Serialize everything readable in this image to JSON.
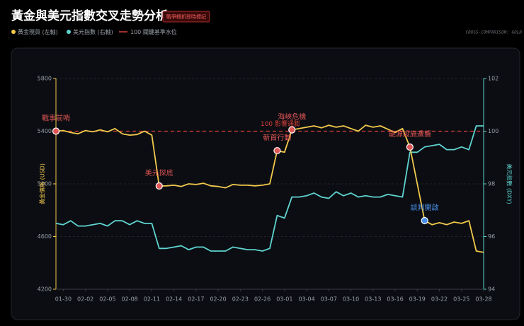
{
  "chart_data": {
    "type": "line",
    "title": "黃金與美元指數交叉走勢分析",
    "badge": "戰爭轉折即時標記",
    "subtitle": "CROSS-COMPARISON: GOLD",
    "ylabel": "黃金價格 (USD)",
    "y2label": "美元指數 (DXY)",
    "categories": [
      null,
      "01-30",
      null,
      null,
      "02-02",
      null,
      null,
      "02-05",
      null,
      null,
      "02-08",
      null,
      null,
      "02-11",
      null,
      null,
      "02-14",
      null,
      null,
      "02-17",
      null,
      null,
      "02-20",
      null,
      null,
      "02-23",
      null,
      null,
      "02-26",
      null,
      null,
      "03-01",
      null,
      null,
      "03-04",
      null,
      null,
      "03-07",
      null,
      null,
      "03-10",
      null,
      null,
      "03-13",
      null,
      null,
      "03-16",
      null,
      null,
      "03-19",
      null,
      null,
      "03-22",
      null,
      null,
      "03-25",
      null,
      null,
      "03-28"
    ],
    "series": [
      {
        "name": "黃金現貨 (左軸)",
        "color": "#f2c94c",
        "values": [
          5400,
          5405,
          5390,
          5380,
          5405,
          5395,
          5410,
          5395,
          5420,
          5380,
          5370,
          5375,
          5400,
          5370,
          4984,
          4985,
          4990,
          4980,
          5000,
          4995,
          5005,
          4985,
          4980,
          4970,
          4995,
          4990,
          4990,
          4985,
          4990,
          5000,
          5252,
          5240,
          5410,
          5420,
          5430,
          5440,
          5425,
          5445,
          5430,
          5440,
          5420,
          5400,
          5445,
          5430,
          5440,
          5415,
          5390,
          5420,
          5279,
          5000,
          4721,
          4690,
          4705,
          4690,
          4710,
          4700,
          4720,
          4490,
          4480
        ],
        "annotations": [
          {
            "text": "戰事前哨",
            "color": "#e05555"
          },
          null,
          null,
          null,
          null,
          null,
          null,
          null,
          null,
          null,
          null,
          null,
          null,
          null,
          {
            "text": "美元探底",
            "color": "#e05555"
          },
          null,
          null,
          null,
          null,
          null,
          null,
          null,
          null,
          null,
          null,
          null,
          null,
          null,
          null,
          null,
          {
            "text": "斬首行動",
            "color": "#e05555"
          },
          null,
          {
            "text": "海峽危機",
            "color": "#e05555"
          },
          null,
          null,
          null,
          null,
          null,
          null,
          null,
          null,
          null,
          null,
          null,
          null,
          null,
          null,
          null,
          {
            "text": "能源設施遭襲",
            "color": "#e05555"
          },
          null,
          {
            "text": "談判開啟",
            "color": "#4a8fe8"
          },
          null,
          null,
          null,
          null,
          null,
          null,
          null,
          null
        ]
      },
      {
        "name": "美元指數 (右軸)",
        "color": "#5fd3d0",
        "axis": "y2",
        "values": [
          96.5,
          96.45,
          96.6,
          96.4,
          96.4,
          96.45,
          96.5,
          96.4,
          96.6,
          96.6,
          96.45,
          96.6,
          96.5,
          96.5,
          95.55,
          95.55,
          95.6,
          95.65,
          95.5,
          95.6,
          95.6,
          95.45,
          95.45,
          95.45,
          95.6,
          95.55,
          95.5,
          95.5,
          95.45,
          95.55,
          96.8,
          96.7,
          97.5,
          97.5,
          97.55,
          97.65,
          97.5,
          97.45,
          97.7,
          97.55,
          97.65,
          97.5,
          97.55,
          97.5,
          97.5,
          97.6,
          97.55,
          97.5,
          99.2,
          99.2,
          99.4,
          99.45,
          99.5,
          99.3,
          99.3,
          99.4,
          99.3,
          100.2,
          100.2
        ]
      }
    ],
    "reference": {
      "value": 100,
      "axis": "y2",
      "label": "100 影響通膨",
      "legend": "100 關鍵基準水位",
      "color": "#d9403a"
    },
    "ylim": [
      4200,
      5800
    ],
    "yticks": [
      4200,
      4600,
      5000,
      5400,
      5800
    ],
    "y2lim": [
      94,
      102
    ],
    "y2ticks": [
      94,
      96,
      98,
      100,
      102
    ],
    "grid": true
  }
}
